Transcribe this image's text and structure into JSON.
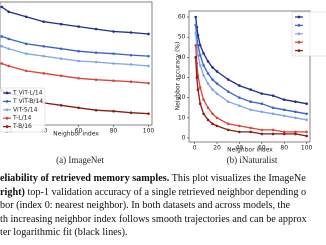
{
  "chart_data": [
    {
      "type": "line",
      "caption": "(a) ImageNet",
      "xlabel": "Neighbor index",
      "x": [
        16,
        20,
        30,
        40,
        50,
        60,
        70,
        80,
        90,
        100
      ],
      "xlim": [
        15,
        102
      ],
      "ylim": [
        60,
        85
      ],
      "xticks": [
        20,
        40,
        60,
        80,
        100
      ],
      "legend": "lower left",
      "series": [
        {
          "name": "T ViT-L/14",
          "color": "#1c2f8f",
          "values": [
            84,
            83,
            82,
            81,
            80.5,
            80,
            79.5,
            79,
            78.8,
            78.5
          ]
        },
        {
          "name": "T ViT-B/14",
          "color": "#3a62c9",
          "values": [
            78,
            77.5,
            76.5,
            76,
            75.5,
            75,
            74.7,
            74.5,
            74.2,
            74
          ]
        },
        {
          "name": "ViT-S/14",
          "color": "#7fa6e6",
          "values": [
            76,
            75.5,
            74.5,
            74,
            73.5,
            73,
            72.8,
            72.5,
            72.3,
            72
          ]
        },
        {
          "name": "T-L/14",
          "color": "#d9453a",
          "values": [
            72.5,
            72,
            71,
            70.5,
            70,
            69.5,
            69.2,
            69,
            68.8,
            68.5
          ]
        },
        {
          "name": "T-B/16",
          "color": "#8e1a12",
          "values": [
            67,
            66.5,
            65.5,
            64.5,
            64,
            63.5,
            63,
            62.8,
            62.5,
            62.3
          ]
        }
      ]
    },
    {
      "type": "line",
      "caption": "(b) iNaturalist",
      "xlabel": "Neighbor index",
      "ylabel": "Neighbor accuracy (%)",
      "x": [
        1,
        2,
        3,
        5,
        8,
        12,
        16,
        20,
        30,
        40,
        50,
        60,
        70,
        80,
        90,
        100
      ],
      "xlim": [
        -5,
        103
      ],
      "ylim": [
        -2,
        63
      ],
      "xticks": [
        0,
        20,
        40,
        60,
        80,
        100
      ],
      "yticks": [
        0,
        10,
        20,
        30,
        40,
        50,
        60
      ],
      "legend": "upper right",
      "series": [
        {
          "color": "#1c2f8f",
          "values": [
            60,
            55,
            51,
            46,
            42,
            38,
            35,
            33,
            29,
            26,
            24,
            22,
            21,
            19,
            18,
            17
          ]
        },
        {
          "color": "#3a62c9",
          "values": [
            56,
            50,
            46,
            41,
            36,
            32,
            29,
            27,
            23,
            20,
            18,
            17,
            15,
            14,
            13,
            12
          ]
        },
        {
          "color": "#7fa6e6",
          "values": [
            52,
            45,
            41,
            36,
            31,
            27,
            24,
            22,
            18,
            16,
            14,
            13,
            12,
            11,
            10,
            9
          ]
        },
        {
          "color": "#d9453a",
          "values": [
            46,
            37,
            31,
            25,
            19,
            15,
            12,
            10,
            7,
            6,
            5,
            4,
            4,
            3,
            3,
            3
          ]
        },
        {
          "color": "#8e1a12",
          "values": [
            40,
            30,
            24,
            17,
            12,
            9,
            7,
            6,
            4,
            3,
            3,
            2,
            2,
            2,
            2,
            1
          ]
        }
      ]
    }
  ],
  "caption": {
    "lines": [
      [
        {
          "text": "eliability of retrieved memory samples.",
          "bold": true
        },
        {
          "text": " This plot visualizes the ImageNe"
        }
      ],
      [
        {
          "text": "right)",
          "bold": true
        },
        {
          "text": " top-1 validation accuracy of a single retrieved neighbor depending o"
        }
      ],
      [
        {
          "text": "bor (index 0: nearest neighbor). In both datasets and across models, the"
        }
      ],
      [
        {
          "text": "th increasing neighbor index follows smooth trajectories and can be approx"
        }
      ],
      [
        {
          "text": "ter logarithmic fit (black lines)."
        }
      ]
    ]
  }
}
